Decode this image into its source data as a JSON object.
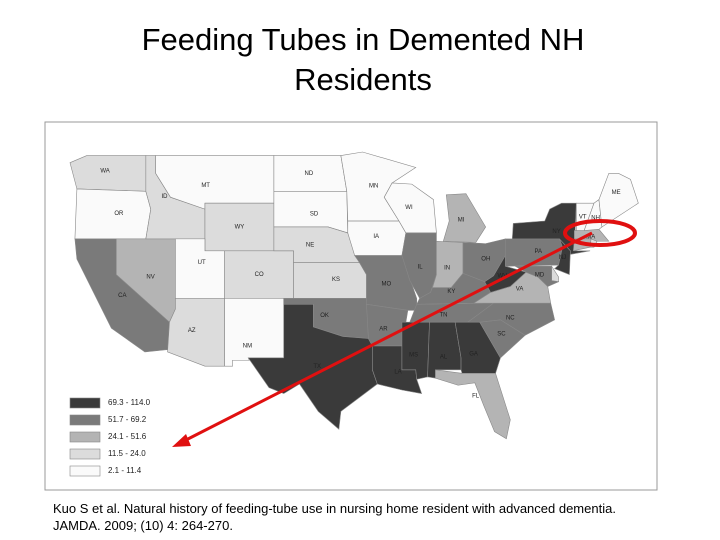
{
  "title_lines": [
    "Feeding Tubes in Demented NH",
    "Residents"
  ],
  "legend": [
    {
      "label": "69.3 - 114.0",
      "color": "#3a3a3a"
    },
    {
      "label": "51.7 - 69.2",
      "color": "#7a7a7a"
    },
    {
      "label": "24.1 - 51.6",
      "color": "#b4b4b4"
    },
    {
      "label": "11.5 - 24.0",
      "color": "#dcdcdc"
    },
    {
      "label": "2.1 - 11.4",
      "color": "#fafafa"
    }
  ],
  "states": [
    {
      "label": "WA",
      "color": "#dcdcdc"
    },
    {
      "label": "OR",
      "color": "#fafafa"
    },
    {
      "label": "CA",
      "color": "#7a7a7a"
    },
    {
      "label": "NV",
      "color": "#b4b4b4"
    },
    {
      "label": "ID",
      "color": "#dcdcdc"
    },
    {
      "label": "MT",
      "color": "#fafafa"
    },
    {
      "label": "WY",
      "color": "#dcdcdc"
    },
    {
      "label": "UT",
      "color": "#fafafa"
    },
    {
      "label": "CO",
      "color": "#dcdcdc"
    },
    {
      "label": "AZ",
      "color": "#dcdcdc"
    },
    {
      "label": "NM",
      "color": "#fafafa"
    },
    {
      "label": "ND",
      "color": "#fafafa"
    },
    {
      "label": "SD",
      "color": "#fafafa"
    },
    {
      "label": "NE",
      "color": "#dcdcdc"
    },
    {
      "label": "KS",
      "color": "#dcdcdc"
    },
    {
      "label": "OK",
      "color": "#7a7a7a"
    },
    {
      "label": "TX",
      "color": "#3a3a3a"
    },
    {
      "label": "MN",
      "color": "#fafafa"
    },
    {
      "label": "IA",
      "color": "#fafafa"
    },
    {
      "label": "MO",
      "color": "#7a7a7a"
    },
    {
      "label": "AR",
      "color": "#7a7a7a"
    },
    {
      "label": "LA",
      "color": "#3a3a3a"
    },
    {
      "label": "WI",
      "color": "#fafafa"
    },
    {
      "label": "IL",
      "color": "#7a7a7a"
    },
    {
      "label": "MI",
      "color": "#b4b4b4"
    },
    {
      "label": "IN",
      "color": "#b4b4b4"
    },
    {
      "label": "OH",
      "color": "#7a7a7a"
    },
    {
      "label": "KY",
      "color": "#7a7a7a"
    },
    {
      "label": "TN",
      "color": "#7a7a7a"
    },
    {
      "label": "MS",
      "color": "#3a3a3a"
    },
    {
      "label": "AL",
      "color": "#3a3a3a"
    },
    {
      "label": "GA",
      "color": "#3a3a3a"
    },
    {
      "label": "FL",
      "color": "#b4b4b4"
    },
    {
      "label": "SC",
      "color": "#7a7a7a"
    },
    {
      "label": "NC",
      "color": "#7a7a7a"
    },
    {
      "label": "VA",
      "color": "#b4b4b4"
    },
    {
      "label": "WV",
      "color": "#3a3a3a"
    },
    {
      "label": "PA",
      "color": "#7a7a7a"
    },
    {
      "label": "MD",
      "color": "#7a7a7a"
    },
    {
      "label": null,
      "color": "#dcdcdc"
    },
    {
      "label": "NJ",
      "color": "#3a3a3a"
    },
    {
      "label": "NY",
      "color": "#3a3a3a"
    },
    {
      "label": null,
      "color": "#b4b4b4"
    },
    {
      "label": null,
      "color": "#dcdcdc"
    },
    {
      "label": "MA",
      "color": "#b4b4b4"
    },
    {
      "label": "VT",
      "color": "#fafafa"
    },
    {
      "label": "NH",
      "color": "#fafafa"
    },
    {
      "label": "ME",
      "color": "#fafafa"
    }
  ],
  "citation_lines": [
    "Kuo S et al. Natural history of feeding-tube use in nursing home resident with advanced dementia.",
    "JAMDA. 2009; (10) 4: 264-270."
  ]
}
